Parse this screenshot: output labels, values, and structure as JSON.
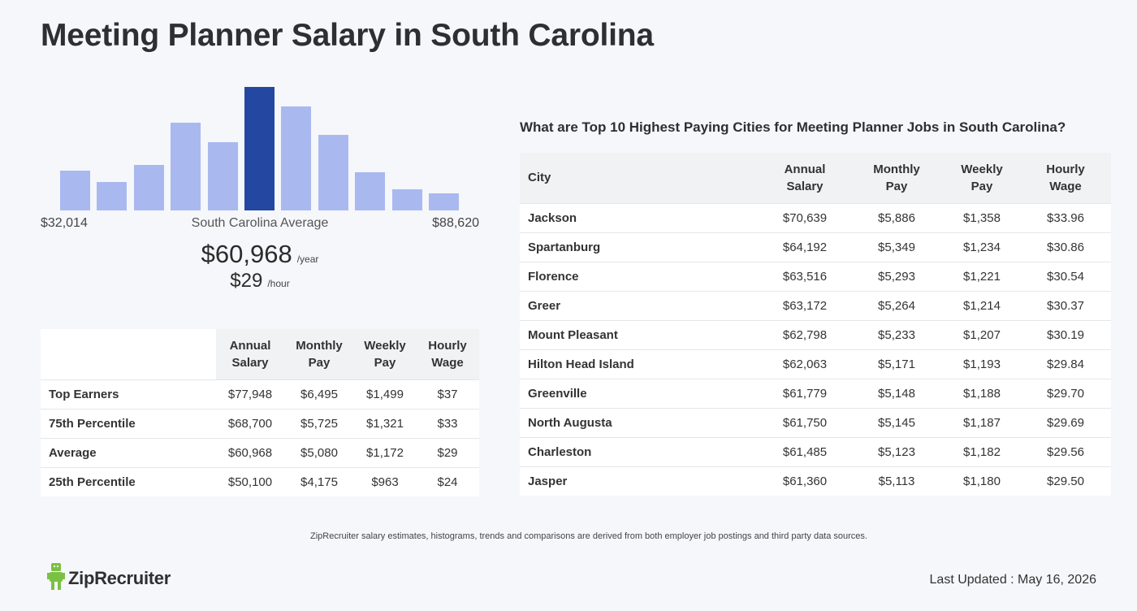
{
  "title": "Meeting Planner Salary in South Carolina",
  "histogram": {
    "bars": [
      0.32,
      0.23,
      0.37,
      0.71,
      0.55,
      1.0,
      0.84,
      0.61,
      0.31,
      0.17,
      0.14
    ],
    "highlight_index": 5,
    "colors": {
      "bar": "#aab8f0",
      "highlight": "#2447a1"
    }
  },
  "range": {
    "min": "$32,014",
    "label": "South Carolina Average",
    "max": "$88,620"
  },
  "average": {
    "yearly": "$60,968",
    "yearly_unit": "/year",
    "hourly": "$29",
    "hourly_unit": "/hour"
  },
  "percentile_table": {
    "headers": [
      {
        "line1": "Annual",
        "line2": "Salary"
      },
      {
        "line1": "Monthly",
        "line2": "Pay"
      },
      {
        "line1": "Weekly",
        "line2": "Pay"
      },
      {
        "line1": "Hourly",
        "line2": "Wage"
      }
    ],
    "rows": [
      {
        "label": "Top Earners",
        "annual": "$77,948",
        "monthly": "$6,495",
        "weekly": "$1,499",
        "hourly": "$37"
      },
      {
        "label": "75th Percentile",
        "annual": "$68,700",
        "monthly": "$5,725",
        "weekly": "$1,321",
        "hourly": "$33"
      },
      {
        "label": "Average",
        "annual": "$60,968",
        "monthly": "$5,080",
        "weekly": "$1,172",
        "hourly": "$29"
      },
      {
        "label": "25th Percentile",
        "annual": "$50,100",
        "monthly": "$4,175",
        "weekly": "$963",
        "hourly": "$24"
      }
    ]
  },
  "cities": {
    "heading": "What are Top 10 Highest Paying Cities for Meeting Planner Jobs in South Carolina?",
    "headers": {
      "city": "City",
      "annual": {
        "line1": "Annual",
        "line2": "Salary"
      },
      "monthly": {
        "line1": "Monthly",
        "line2": "Pay"
      },
      "weekly": {
        "line1": "Weekly",
        "line2": "Pay"
      },
      "hourly": {
        "line1": "Hourly",
        "line2": "Wage"
      }
    },
    "rows": [
      {
        "city": "Jackson",
        "annual": "$70,639",
        "monthly": "$5,886",
        "weekly": "$1,358",
        "hourly": "$33.96"
      },
      {
        "city": "Spartanburg",
        "annual": "$64,192",
        "monthly": "$5,349",
        "weekly": "$1,234",
        "hourly": "$30.86"
      },
      {
        "city": "Florence",
        "annual": "$63,516",
        "monthly": "$5,293",
        "weekly": "$1,221",
        "hourly": "$30.54"
      },
      {
        "city": "Greer",
        "annual": "$63,172",
        "monthly": "$5,264",
        "weekly": "$1,214",
        "hourly": "$30.37"
      },
      {
        "city": "Mount Pleasant",
        "annual": "$62,798",
        "monthly": "$5,233",
        "weekly": "$1,207",
        "hourly": "$30.19"
      },
      {
        "city": "Hilton Head Island",
        "annual": "$62,063",
        "monthly": "$5,171",
        "weekly": "$1,193",
        "hourly": "$29.84"
      },
      {
        "city": "Greenville",
        "annual": "$61,779",
        "monthly": "$5,148",
        "weekly": "$1,188",
        "hourly": "$29.70"
      },
      {
        "city": "North Augusta",
        "annual": "$61,750",
        "monthly": "$5,145",
        "weekly": "$1,187",
        "hourly": "$29.69"
      },
      {
        "city": "Charleston",
        "annual": "$61,485",
        "monthly": "$5,123",
        "weekly": "$1,182",
        "hourly": "$29.56"
      },
      {
        "city": "Jasper",
        "annual": "$61,360",
        "monthly": "$5,113",
        "weekly": "$1,180",
        "hourly": "$29.50"
      }
    ]
  },
  "footnote": "ZipRecruiter salary estimates, histograms, trends and comparisons are derived from both employer job postings and third party data sources.",
  "logo": {
    "text": "ZipRecruiter",
    "icon": "ziprecruiter-mascot-icon",
    "color": "#7ac143"
  },
  "last_updated": "Last Updated : May 16, 2026"
}
